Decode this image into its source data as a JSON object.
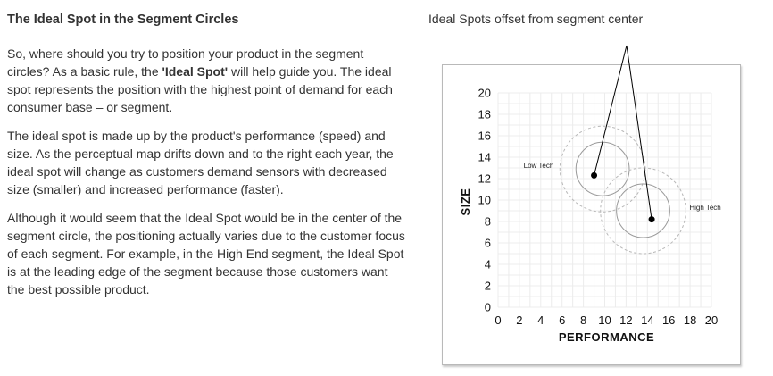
{
  "article": {
    "heading": "The Ideal Spot in the Segment Circles",
    "p1_a": "So, where should you try to position your product in the segment circles? As a basic rule, the ",
    "p1_b": "'Ideal Spot'",
    "p1_c": " will help guide you. The ideal spot represents the position with the highest point of demand for each consumer base – or segment.",
    "p2": "The ideal spot is made up by the product's performance (speed) and size. As the perceptual map drifts down and to the right each year, the ideal spot will change as customers demand sensors with decreased size (smaller) and increased performance (faster).",
    "p3": "Although it would seem that the Ideal Spot would be in the center of the segment circle, the positioning actually varies due to the customer focus of each segment. For example, in the High End segment, the Ideal Spot is at the leading edge of the segment because those customers want the best possible product."
  },
  "figure": {
    "caption": "Ideal Spots offset from segment center",
    "xlabel": "PERFORMANCE",
    "ylabel": "SIZE",
    "xlim": [
      0,
      20
    ],
    "ylim": [
      0,
      20
    ],
    "x_ticks": [
      "0",
      "2",
      "4",
      "6",
      "8",
      "10",
      "12",
      "14",
      "16",
      "18",
      "20"
    ],
    "y_ticks": [
      "0",
      "2",
      "4",
      "6",
      "8",
      "10",
      "12",
      "14",
      "16",
      "18",
      "20"
    ],
    "grid": true,
    "segments": [
      {
        "name": "Low Tech",
        "center": [
          9.8,
          12.9
        ],
        "inner_radius": 2.5,
        "outer_radius": 4.0,
        "ideal_spot": [
          9.0,
          12.3
        ],
        "label_side": "left"
      },
      {
        "name": "High Tech",
        "center": [
          13.6,
          9.0
        ],
        "inner_radius": 2.5,
        "outer_radius": 4.0,
        "ideal_spot": [
          14.4,
          8.2
        ],
        "label_side": "right"
      }
    ],
    "colors": {
      "grid": "#ececec",
      "inner_circle": "#9a9a9a",
      "outer_circle": "#b8b8b8",
      "dot": "#000000",
      "pointer": "#000000"
    }
  }
}
